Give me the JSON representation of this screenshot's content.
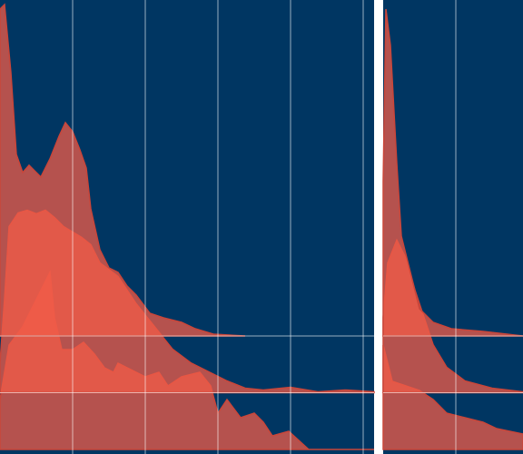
{
  "chart_data": [
    {
      "type": "ridgeline",
      "xlim": [
        0,
        5.15
      ],
      "xticks": [
        1,
        2,
        3,
        4,
        5
      ],
      "ylim": [
        0,
        495
      ],
      "grid": true,
      "series": [
        {
          "color": "#f15c48",
          "x": [
            0,
            0.125,
            0.3125,
            0.5,
            0.6875,
            0.75,
            0.85,
            1.0,
            1.15,
            1.3,
            1.4375,
            1.5625,
            1.625,
            1.75,
            1.875,
            2.0,
            2.1875,
            2.3125,
            2.5,
            2.75,
            2.9,
            3.0,
            3.125,
            3.3125,
            3.5,
            3.625,
            3.75,
            3.975,
            4.25,
            4.625,
            4.9375,
            5.15
          ],
          "values": [
            55,
            115,
            135,
            165,
            195,
            145,
            110,
            110,
            118,
            105,
            90,
            85,
            95,
            90,
            85,
            80,
            85,
            70,
            80,
            85,
            70,
            40,
            55,
            35,
            40,
            30,
            15,
            20,
            0,
            0,
            0,
            0
          ]
        },
        {
          "color": "#f15c48",
          "x": [
            0,
            0.0625,
            0.125,
            0.25,
            0.375,
            0.5,
            0.625,
            0.75,
            0.875,
            1.125,
            1.25,
            1.375,
            1.625,
            1.875,
            2.125,
            2.375,
            2.625,
            2.875,
            3.125,
            3.375,
            3.625,
            4.0,
            4.375,
            4.75,
            5.15
          ],
          "values": [
            33,
            103,
            183,
            198,
            201,
            197,
            201,
            193,
            183,
            171,
            163,
            143,
            128,
            98,
            73,
            48,
            33,
            23,
            13,
            5,
            3,
            6,
            1,
            3,
            1
          ]
        },
        {
          "color": "#f15c48",
          "x": [
            0,
            0.0625,
            0.15,
            0.225,
            0.3125,
            0.4,
            0.5,
            0.5625,
            0.6875,
            0.8125,
            0.9,
            1.0,
            1.1,
            1.1875,
            1.25,
            1.375,
            1.5,
            1.625,
            1.75,
            1.875,
            2.0625,
            2.25,
            2.5,
            2.6875,
            2.9375,
            3.375
          ],
          "values": [
            360,
            365,
            290,
            200,
            180,
            188,
            180,
            175,
            195,
            220,
            235,
            225,
            205,
            185,
            140,
            95,
            75,
            70,
            55,
            45,
            25,
            20,
            15,
            8,
            2,
            0
          ]
        }
      ]
    },
    {
      "type": "ridgeline",
      "xlim": [
        0,
        1.925
      ],
      "xticks": [
        1
      ],
      "ylim": [
        0,
        495
      ],
      "grid": true,
      "series": [
        {
          "color": "#f15c48",
          "x": [
            0,
            0.125,
            0.3125,
            0.5,
            0.6875,
            0.875,
            1.125,
            1.375,
            1.5625,
            1.925
          ],
          "values": [
            115,
            75,
            70,
            65,
            55,
            40,
            35,
            30,
            23,
            17
          ]
        },
        {
          "color": "#f15c48",
          "x": [
            0,
            0.0625,
            0.1875,
            0.3125,
            0.4375,
            0.5625,
            0.6875,
            0.875,
            1.125,
            1.5,
            1.925
          ],
          "values": [
            83,
            143,
            168,
            148,
            113,
            83,
            53,
            28,
            13,
            5,
            1
          ]
        },
        {
          "color": "#f15c48",
          "x": [
            0,
            0.0375,
            0.1,
            0.1875,
            0.25,
            0.375,
            0.5,
            0.6875,
            0.9375,
            1.375,
            1.925
          ],
          "values": [
            170,
            360,
            320,
            190,
            110,
            70,
            30,
            15,
            8,
            5,
            0
          ]
        }
      ]
    }
  ]
}
